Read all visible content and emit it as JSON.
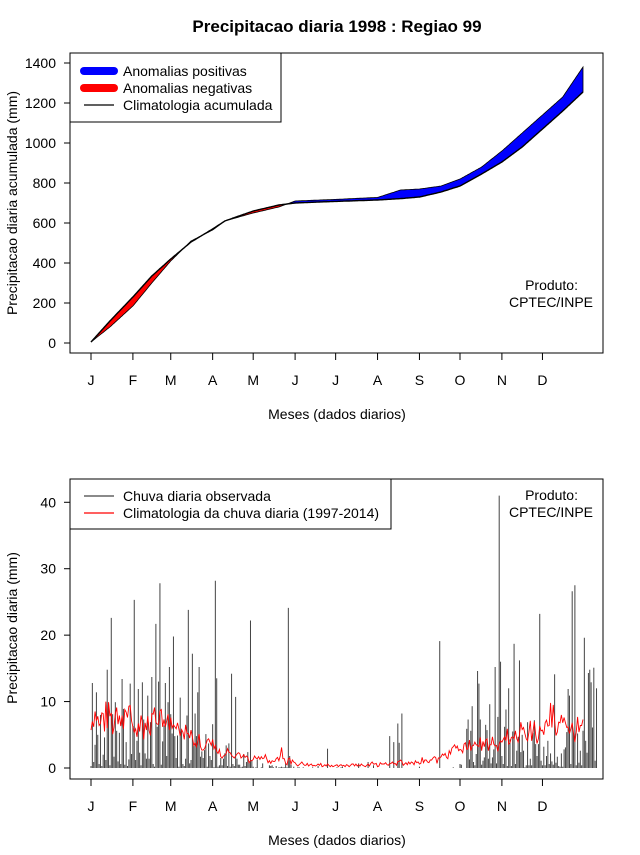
{
  "chart_data": [
    {
      "type": "area",
      "title": "Precipitacao diaria 1998 : Regiao 99",
      "xlabel": "Meses (dados diarios)",
      "ylabel": "Precipitacao diaria acumulada (mm)",
      "xlim": [
        1,
        365
      ],
      "ylim": [
        0,
        1400
      ],
      "month_labels": [
        "J",
        "F",
        "M",
        "A",
        "M",
        "J",
        "J",
        "A",
        "S",
        "O",
        "N",
        "D"
      ],
      "month_days": [
        1,
        32,
        60,
        91,
        121,
        152,
        182,
        213,
        244,
        274,
        305,
        335
      ],
      "yticks": [
        0,
        200,
        400,
        600,
        800,
        1000,
        1200,
        1400
      ],
      "legend": [
        "Anomalias positivas",
        "Anomalias negativas",
        "Climatologia acumulada"
      ],
      "colors": {
        "positive": "#0000ff",
        "negative": "#ff0000",
        "climatology": "#000000"
      },
      "product": [
        "Produto:",
        "CPTEC/INPE"
      ],
      "climatology_x": [
        1,
        15,
        32,
        46,
        60,
        75,
        91,
        100,
        121,
        140,
        152,
        170,
        182,
        200,
        213,
        230,
        244,
        260,
        274,
        290,
        305,
        320,
        335,
        350,
        365
      ],
      "climatology_y": [
        5,
        110,
        230,
        335,
        420,
        505,
        570,
        610,
        660,
        690,
        700,
        705,
        708,
        712,
        715,
        722,
        730,
        755,
        785,
        845,
        905,
        980,
        1070,
        1160,
        1255
      ],
      "observed_x": [
        1,
        15,
        32,
        46,
        60,
        75,
        91,
        100,
        121,
        140,
        152,
        170,
        182,
        200,
        213,
        230,
        244,
        260,
        274,
        290,
        305,
        320,
        335,
        350,
        365
      ],
      "observed_y": [
        5,
        80,
        185,
        300,
        410,
        510,
        565,
        610,
        650,
        680,
        710,
        715,
        718,
        724,
        728,
        765,
        770,
        785,
        820,
        880,
        960,
        1050,
        1140,
        1230,
        1380
      ]
    },
    {
      "type": "bar",
      "xlabel": "Meses (dados diarios)",
      "ylabel": "Precipitacao diaria (mm)",
      "xlim": [
        1,
        365
      ],
      "ylim": [
        0,
        42
      ],
      "month_labels": [
        "J",
        "F",
        "M",
        "A",
        "M",
        "J",
        "J",
        "A",
        "S",
        "O",
        "N",
        "D"
      ],
      "month_days": [
        1,
        32,
        60,
        91,
        121,
        152,
        182,
        213,
        244,
        274,
        305,
        335
      ],
      "yticks": [
        0,
        10,
        20,
        30,
        40
      ],
      "legend": [
        "Chuva diaria observada",
        "Climatologia da chuva diaria (1997-2014)"
      ],
      "colors": {
        "observed": "#444444",
        "climatology": "#ff0000"
      },
      "product": [
        "Produto:",
        "CPTEC/INPE"
      ],
      "observed_daily": [
        0.3,
        12.8,
        0.9,
        3.5,
        11.4,
        5,
        0.6,
        8,
        0.3,
        2,
        4.6,
        1.2,
        14.8,
        9,
        0.4,
        22.6,
        8.1,
        1.7,
        9.9,
        5.6,
        1,
        5.3,
        0.6,
        13.4,
        8.9,
        0.5,
        3.9,
        0.3,
        1.3,
        12.7,
        2.1,
        6.3,
        25.3,
        1.2,
        4.1,
        11.9,
        2.3,
        0.4,
        12.9,
        7.3,
        2.2,
        1.4,
        10.9,
        1.4,
        6.9,
        13.7,
        0.6,
        0.2,
        21.7,
        6.2,
        13,
        27.8,
        0.5,
        4,
        6.4,
        12.8,
        1.8,
        9.9,
        15.2,
        8.1,
        5.2,
        19.8,
        4.8,
        1.5,
        4.9,
        0.2,
        10.6,
        5.6,
        0.6,
        0.3,
        1.4,
        7.9,
        23.8,
        0.7,
        1.2,
        17.2,
        3.3,
        8.2,
        4.8,
        11.4,
        15.2,
        1.7,
        2.5,
        1.5,
        2.7,
        5.1,
        0.2,
        3.7,
        1.8,
        1.2,
        6.6,
        0.1,
        28.2,
        13.5,
        0.2,
        0.4,
        1.5,
        0.4,
        1.4,
        2.2,
        3.4,
        0.3,
        3.7,
        0.2,
        14.2,
        0.6,
        0.3,
        10.7,
        1.4,
        0.5,
        0.5,
        0.1,
        0.2,
        2.1,
        0.3,
        0.9,
        2.4,
        0.8,
        22.2,
        1.2,
        0.2,
        0,
        0.1,
        1.3,
        0,
        0,
        0.1,
        0.7,
        0,
        0,
        0,
        0,
        0.4,
        0.3,
        0.4,
        0.1,
        0,
        0.3,
        0,
        0.1,
        0.1,
        0.2,
        0.1,
        0.1,
        0.7,
        0.1,
        24.1,
        1.8,
        0.5,
        0,
        0.2,
        0,
        0,
        0.1,
        0.1,
        0,
        0,
        0.1,
        0,
        0,
        0,
        0,
        0,
        0,
        0.1,
        0,
        0,
        0,
        0.3,
        0,
        0,
        0,
        0,
        0,
        0,
        2.9,
        0,
        0,
        0,
        0,
        0,
        0,
        0.1,
        0,
        0,
        0.1,
        0.2,
        0,
        0,
        0,
        0,
        0,
        0,
        0,
        0,
        0,
        0,
        0,
        0.7,
        0,
        0,
        0,
        0,
        0,
        0,
        0.9,
        0,
        0,
        0,
        0.4,
        0,
        0,
        0,
        0,
        0,
        0,
        0,
        0,
        0,
        0,
        0,
        4.8,
        0,
        0,
        3.9,
        0,
        0,
        6.7,
        3.8,
        0,
        8.2,
        0,
        0,
        0,
        0,
        0,
        0,
        0,
        0,
        0,
        0,
        0,
        0,
        0.2,
        0,
        0,
        0,
        0,
        0,
        0,
        0,
        0,
        0,
        0,
        0,
        0,
        0,
        0,
        19.1,
        0,
        0,
        0,
        0,
        0,
        0,
        0,
        0,
        0,
        0.1,
        0,
        0,
        0,
        0,
        0.6,
        0.5,
        0,
        0,
        0,
        5.9,
        7.3,
        1.3,
        5.6,
        9.3,
        0.9,
        0.4,
        2.1,
        14.6,
        12.7,
        7.3,
        0.5,
        1.1,
        1.6,
        6.5,
        5.7,
        1.4,
        9.6,
        0.7,
        1.6,
        2.8,
        15.2,
        0.7,
        7.7,
        41,
        16,
        1.8,
        0.6,
        6.2,
        8.8,
        0.3,
        12,
        4.3,
        0.3,
        5.5,
        18.7,
        0.6,
        2.6,
        4.7,
        16.2,
        2.4,
        5,
        2.6,
        0.1,
        0.4,
        6.9,
        0.4,
        1.4,
        0.4,
        5.3,
        7.2,
        3.6,
        1.8,
        3.6,
        23.2,
        1.1,
        0.4,
        3.2,
        0.4,
        1.8,
        4.1,
        0.6,
        2.2,
        1,
        0.5,
        14.1,
        0.8,
        1.7,
        0.3,
        0.2,
        2.2,
        0.2,
        2.8,
        3.1,
        5.4,
        11.9,
        10.9,
        0.6,
        26.6,
        5.2,
        27.5,
        0.4,
        5.2,
        0.8,
        2.6,
        0.4,
        5.6,
        19.6,
        4.1,
        2.3,
        14.3,
        14.8,
        12.9,
        6.1,
        15.1,
        1.1,
        12
      ],
      "climatology_daily": [
        5.7,
        7,
        6.2,
        8.5,
        7.1,
        7.8,
        6.4,
        6.7,
        8.3,
        8.2,
        5.5,
        10,
        6,
        9.9,
        7.8,
        8.3,
        5.1,
        6.1,
        8.2,
        9.1,
        6.6,
        7.9,
        6.3,
        7.9,
        5.9,
        8.8,
        8.4,
        7.6,
        9.3,
        9.4,
        7.1,
        6.2,
        5.4,
        5.9,
        4.7,
        6.7,
        5.5,
        7.9,
        6.9,
        4.3,
        6.8,
        5.7,
        7.8,
        5.6,
        4.9,
        8.2,
        8.1,
        9.1,
        6.9,
        6.6,
        6.6,
        8.6,
        8.8,
        6.2,
        7.3,
        6.2,
        7.1,
        8.1,
        5.7,
        7.6,
        6,
        6.5,
        6.2,
        5.9,
        6.8,
        5.9,
        4.8,
        5.8,
        5.4,
        4.3,
        6.5,
        5.2,
        5.2,
        4.5,
        5.7,
        4.7,
        3.4,
        3.8,
        3.2,
        4.1,
        5.1,
        3.2,
        2.7,
        2.7,
        2.9,
        3.5,
        4.2,
        4.4,
        3.9,
        3.4,
        4.3,
        2.9,
        3.4,
        2.5,
        2.2,
        2.8,
        1.7,
        1.5,
        1.8,
        1.9,
        2.2,
        2.9,
        2.4,
        2.3,
        1.9,
        1.7,
        1.5,
        1.8,
        2.1,
        2.3,
        2.2,
        1.5,
        1.7,
        2,
        1.6,
        1.8,
        1.6,
        0.8,
        1.1,
        1.1,
        1.3,
        1.8,
        1.5,
        1.4,
        1.7,
        1.3,
        1.7,
        1.4,
        1.5,
        2,
        1.4,
        0.8,
        1.1,
        0.7,
        1.1,
        1,
        1,
        1.4,
        1.6,
        1.1,
        1.8,
        3.1,
        1.4,
        1.4,
        0.7,
        0.5,
        1.4,
        1.5,
        0.6,
        1.2,
        0.9,
        0.8,
        0.5,
        0.3,
        0.5,
        0.7,
        0.9,
        0.6,
        0.4,
        0.4,
        0.7,
        0.3,
        0.5,
        0.6,
        0.3,
        0.4,
        0.3,
        0.4,
        0.6,
        0.4,
        0.7,
        0.2,
        0.3,
        0.5,
        0.3,
        0.6,
        0.4,
        0.2,
        0.4,
        0.2,
        0.3,
        0.4,
        0.5,
        0.2,
        0.4,
        0.5,
        0.3,
        0.4,
        0.2,
        0.5,
        0.4,
        0.2,
        0.4,
        0.6,
        0.6,
        0.3,
        0.6,
        0.3,
        0.5,
        0.3,
        0.6,
        0.4,
        0.3,
        0.2,
        0.4,
        0.6,
        0.3,
        0.7,
        0.9,
        0.6,
        0.6,
        0.7,
        0.2,
        0.3,
        0.8,
        0.6,
        0.6,
        0.6,
        0.8,
        0.5,
        0.4,
        0.7,
        0.7,
        0.9,
        0.6,
        0.7,
        0.4,
        1,
        1,
        1.2,
        1,
        0.4,
        0.6,
        0.8,
        0.5,
        0.9,
        0.6,
        0.9,
        0.8,
        0.5,
        1.1,
        0.8,
        0.9,
        0.6,
        0.7,
        1.6,
        0.8,
        1.2,
        1.2,
        0.9,
        0.8,
        1.2,
        1.2,
        1.5,
        1.7,
        1.6,
        0.7,
        1.5,
        1.5,
        1.7,
        2.1,
        1.9,
        2.2,
        1.6,
        1.4,
        2.6,
        2.1,
        3,
        3.2,
        3.5,
        3,
        3.3,
        2.6,
        2.8,
        2.7,
        2.3,
        3.6,
        3.8,
        2.8,
        2.9,
        4.2,
        2.6,
        3.3,
        3.4,
        3.9,
        3.5,
        3.4,
        3.2,
        4.6,
        2.6,
        4,
        3.2,
        4.2,
        4.4,
        2.6,
        3.5,
        3.5,
        4.7,
        3.6,
        3.3,
        3.4,
        2.5,
        3.6,
        4.1,
        3.9,
        4.3,
        4.7,
        4.1,
        5.9,
        3.6,
        3.8,
        4.6,
        4.7,
        4.4,
        5.6,
        4.4,
        3.9,
        5,
        6.9,
        5.8,
        6.1,
        5.2,
        4.4,
        4.1,
        5.4,
        7.1,
        4.1,
        5.5,
        7,
        5,
        3.7,
        4.4,
        6.3,
        5.6,
        5.7,
        5,
        6.8,
        7.2,
        6.3,
        6.4,
        9.8,
        6.1,
        9.5,
        7.2,
        4.9,
        5.4,
        6.9,
        6.8,
        8,
        6.8,
        7.6,
        6.8,
        6.1,
        6.2,
        5.2,
        5.9,
        6.8,
        5.2,
        3.9,
        5.4,
        7.7,
        5.4,
        6.4,
        6.4,
        7.3
      ]
    }
  ]
}
